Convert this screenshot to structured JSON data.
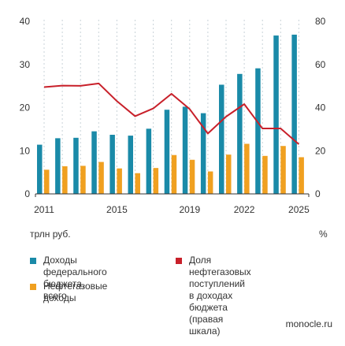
{
  "chart_data": {
    "type": "bar+line",
    "x": [
      2011,
      2012,
      2013,
      2014,
      2015,
      2016,
      2017,
      2018,
      2019,
      2020,
      2021,
      2022,
      2023,
      2024,
      2025
    ],
    "x_tick_labels": [
      "2011",
      "2015",
      "2019",
      "2022",
      "2025"
    ],
    "x_tick_years": [
      2011,
      2015,
      2019,
      2022,
      2025
    ],
    "left_axis": {
      "unit": "трлн руб.",
      "ylim": [
        0,
        40
      ],
      "ticks": [
        "0",
        "10",
        "20",
        "30",
        "40"
      ]
    },
    "right_axis": {
      "unit": "%",
      "ylim": [
        0,
        80
      ],
      "ticks": [
        "0",
        "20",
        "40",
        "60",
        "80"
      ]
    },
    "grid": "vertical dashed lines at each year",
    "series": [
      {
        "name": "Доходы федерального бюджета, всего",
        "kind": "bar",
        "axis": "left",
        "color": "#1a8aa8",
        "values": [
          11.4,
          12.9,
          13.0,
          14.5,
          13.7,
          13.5,
          15.1,
          19.5,
          20.2,
          18.7,
          25.3,
          27.8,
          29.1,
          36.7,
          36.9
        ]
      },
      {
        "name": "Нефтегазовые доходы",
        "kind": "bar",
        "axis": "left",
        "color": "#f0a020",
        "values": [
          5.6,
          6.4,
          6.5,
          7.4,
          5.9,
          4.8,
          6.0,
          9.0,
          7.9,
          5.2,
          9.1,
          11.6,
          8.8,
          11.1,
          8.5
        ]
      },
      {
        "name": "Доля нефтегазовых поступлений в доходах бюджета (правая шкала)",
        "kind": "line",
        "axis": "right",
        "color": "#c8202a",
        "values": [
          49.5,
          50.2,
          50.1,
          51.2,
          43.0,
          36.0,
          39.6,
          46.4,
          39.3,
          28.0,
          35.8,
          41.6,
          30.3,
          30.3,
          23.0
        ]
      }
    ]
  },
  "legend": [
    {
      "label": "Доходы федерального\nбюджета, всего",
      "color": "#1a8aa8"
    },
    {
      "label": "Нефтегазовые доходы",
      "color": "#f0a020"
    },
    {
      "label": "Доля нефтегазовых\nпоступлений\nв доходах бюджета\n(правая шкала)",
      "color": "#c8202a"
    }
  ],
  "source": "monocle.ru"
}
